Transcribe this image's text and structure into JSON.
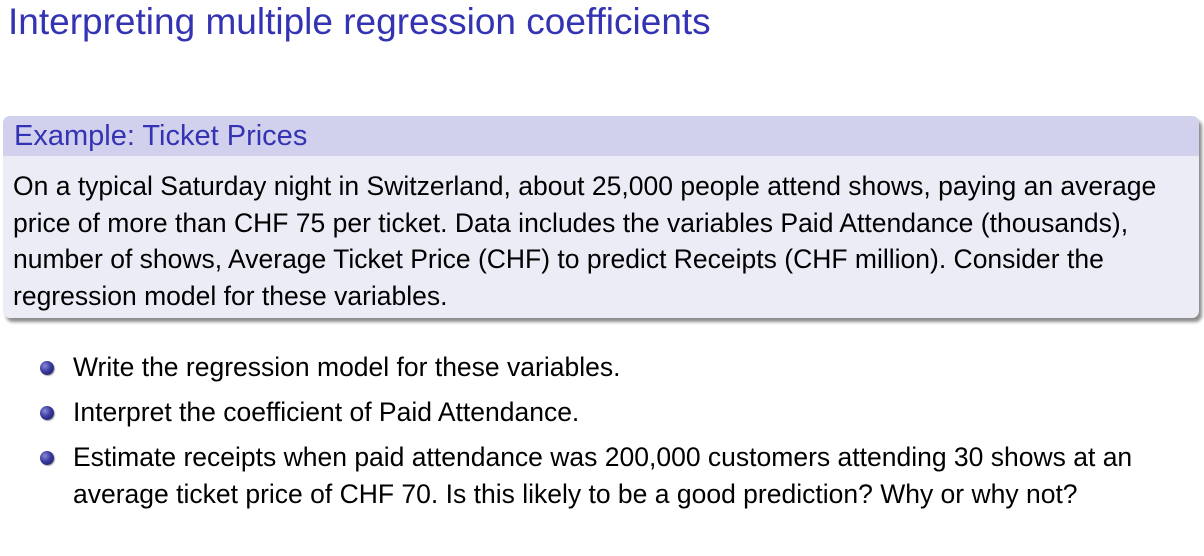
{
  "frame": {
    "title": "Interpreting multiple regression coefficients"
  },
  "example_block": {
    "title": "Example: Ticket Prices",
    "body": "On a typical Saturday night in Switzerland, about 25,000 people attend shows, paying an average price of more than CHF 75 per ticket. Data includes the variables Paid Attendance (thousands), number of shows, Average Ticket Price (CHF) to predict Receipts (CHF million). Consider the regression model for these variables."
  },
  "bullets": [
    "Write the regression model for these variables.",
    "Interpret the coefficient of Paid Attendance.",
    "Estimate receipts when paid attendance was 200,000 customers attending 30 shows at an average ticket price of CHF 70. Is this likely to be a good prediction? Why or why not?"
  ],
  "colors": {
    "title": "#3333b3",
    "block_header": "#d1d1ee",
    "block_body": "#ececf7",
    "bullet": "#3a3aa0"
  },
  "icons": {
    "bullet": "ball-bullet-icon"
  }
}
